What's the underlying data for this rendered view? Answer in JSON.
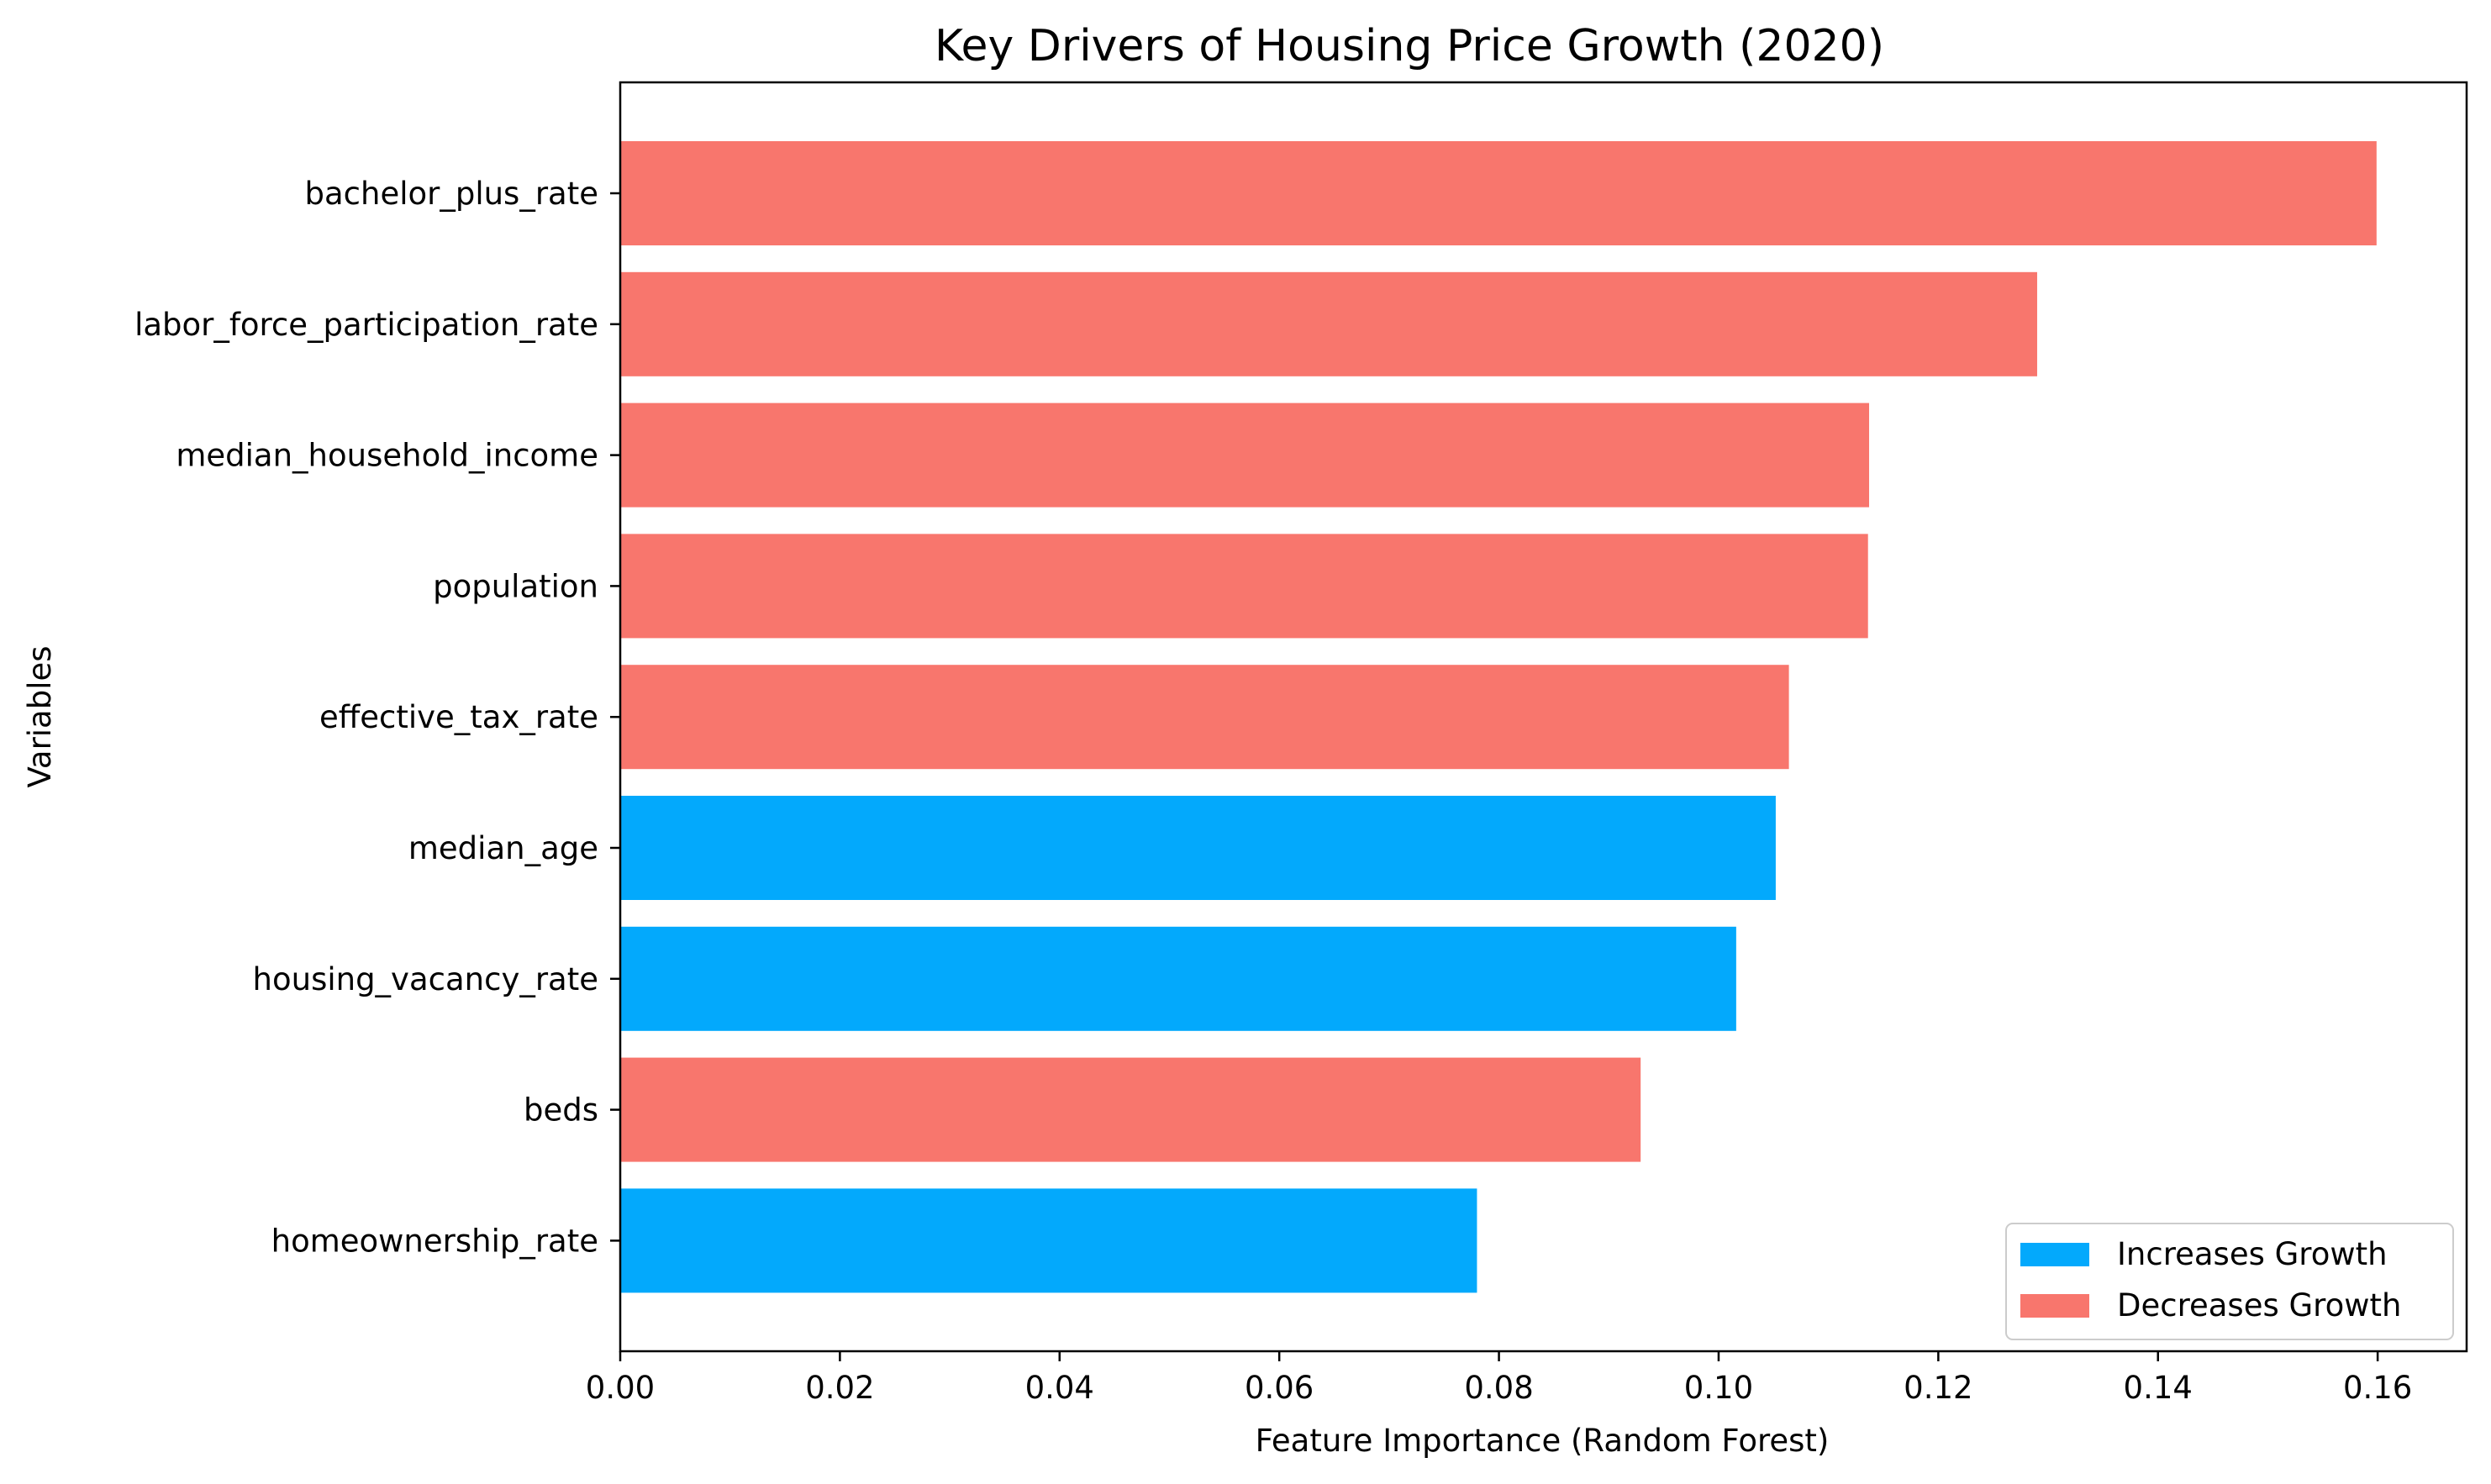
{
  "chart_data": {
    "type": "bar",
    "orientation": "horizontal",
    "title": "Key Drivers of Housing Price Growth (2020)",
    "xlabel": "Feature Importance (Random Forest)",
    "ylabel": "Variables",
    "xlim": [
      0,
      0.1681
    ],
    "xticks": [
      0.0,
      0.02,
      0.04,
      0.06,
      0.08,
      0.1,
      0.12,
      0.14,
      0.16
    ],
    "xtick_labels": [
      "0.00",
      "0.02",
      "0.04",
      "0.06",
      "0.08",
      "0.10",
      "0.12",
      "0.14",
      "0.16"
    ],
    "categories": [
      "bachelor_plus_rate",
      "labor_force_participation_rate",
      "median_household_income",
      "population",
      "effective_tax_rate",
      "median_age",
      "housing_vacancy_rate",
      "beds",
      "homeownership_rate"
    ],
    "values": [
      0.1599,
      0.129,
      0.1137,
      0.1136,
      0.1064,
      0.1052,
      0.1016,
      0.0929,
      0.078
    ],
    "effects": [
      "decreases",
      "decreases",
      "decreases",
      "decreases",
      "decreases",
      "increases",
      "increases",
      "decreases",
      "increases"
    ],
    "colors": {
      "increases": "#03a9fc",
      "decreases": "#f8766d"
    },
    "legend": {
      "placement": "lower-right",
      "entries": [
        {
          "key": "increases",
          "label": "Increases Growth"
        },
        {
          "key": "decreases",
          "label": "Decreases Growth"
        }
      ]
    },
    "grid": false
  }
}
